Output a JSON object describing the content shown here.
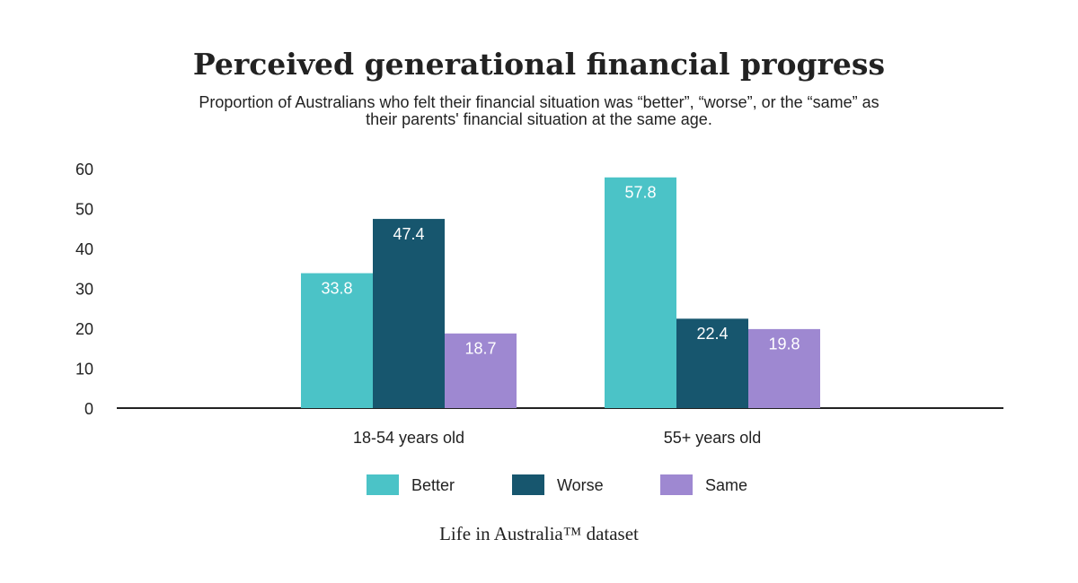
{
  "chart_data": {
    "type": "bar",
    "title": "Perceived generational financial progress",
    "subtitle": "Proportion of Australians who felt their financial situation was “better”, “worse”, or the “same” as their parents' financial situation at the same age.",
    "source": "Life in Australia™ dataset",
    "categories": [
      "18-54 years old",
      "55+ years old"
    ],
    "series": [
      {
        "name": "Better",
        "color": "#4bc3c7",
        "values": [
          33.8,
          57.8
        ]
      },
      {
        "name": "Worse",
        "color": "#17566e",
        "values": [
          47.4,
          22.4
        ]
      },
      {
        "name": "Same",
        "color": "#9e88d1",
        "values": [
          18.7,
          19.8
        ]
      }
    ],
    "ylim": [
      0,
      60
    ],
    "yticks": [
      0,
      10,
      20,
      30,
      40,
      50,
      60
    ],
    "grid": false,
    "legend": "bottom"
  }
}
